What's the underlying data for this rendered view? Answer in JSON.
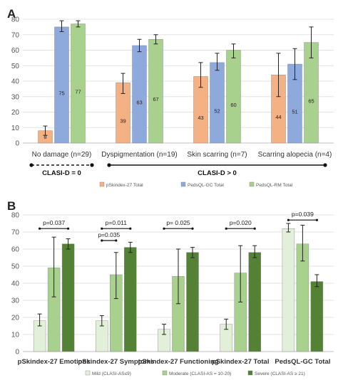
{
  "chart_data": [
    {
      "panel": "A",
      "type": "bar",
      "ylim": [
        0,
        80
      ],
      "yticks": [
        0,
        10,
        20,
        30,
        40,
        50,
        60,
        70,
        80
      ],
      "grid": true,
      "legend_position": "bottom",
      "categories": [
        "No damage (n=29)",
        "Dyspigmentation (n=19)",
        "Skin scarring (n=7)",
        "Scarring alopecia (n=4)"
      ],
      "series": [
        {
          "name": "pSkindex-27 Total",
          "color": "#F4B183",
          "values": [
            8,
            39,
            43,
            44
          ],
          "err_low": [
            5,
            32,
            36,
            30
          ],
          "err_high": [
            11,
            45,
            52,
            58
          ],
          "labels": [
            "8",
            "39",
            "43",
            "44"
          ]
        },
        {
          "name": "PedsQL-GC Total",
          "color": "#8EA9DB",
          "values": [
            75,
            63,
            52,
            51
          ],
          "err_low": [
            72,
            59,
            47,
            41
          ],
          "err_high": [
            79,
            67,
            58,
            61
          ],
          "labels": [
            "75",
            "63",
            "52",
            "51"
          ]
        },
        {
          "name": "PedsQL-RM Total",
          "color": "#A9D18E",
          "values": [
            77,
            67,
            60,
            65
          ],
          "err_low": [
            75,
            64,
            55,
            55
          ],
          "err_high": [
            79,
            70,
            64,
            75
          ],
          "labels": [
            "77",
            "67",
            "60",
            "65"
          ]
        }
      ],
      "groups": [
        {
          "label": "CLASI-D = 0",
          "style": "dashed",
          "from": 0,
          "to": 0
        },
        {
          "label": "CLASI-D > 0",
          "style": "solid",
          "from": 1,
          "to": 3
        }
      ]
    },
    {
      "panel": "B",
      "type": "bar",
      "ylim": [
        0,
        80
      ],
      "yticks": [
        0,
        10,
        20,
        30,
        40,
        50,
        60,
        70,
        80
      ],
      "grid": true,
      "legend_position": "bottom",
      "categories": [
        "pSkindex-27 Emotions",
        "pSkindex-27 Symptoms",
        "pSkindex-27 Functioning",
        "pSkindex-27 Total",
        "PedsQL-GC Total"
      ],
      "series": [
        {
          "name": "Mild (CLASI-AS≤9)",
          "color": "#E2F0D9",
          "values": [
            18,
            18,
            13,
            16,
            72
          ],
          "err_low": [
            15,
            15,
            10,
            13,
            70
          ],
          "err_high": [
            22,
            21,
            16,
            19,
            75
          ]
        },
        {
          "name": "Moderate (CLASI-AS = 10-20)",
          "color": "#A9D18E",
          "values": [
            49,
            45,
            44,
            46,
            63
          ],
          "err_low": [
            32,
            31,
            28,
            29,
            53
          ],
          "err_high": [
            67,
            58,
            60,
            62,
            74
          ]
        },
        {
          "name": "Severe (CLASI-AS ≥ 21)",
          "color": "#548235",
          "values": [
            63,
            61,
            58,
            58,
            41
          ],
          "err_low": [
            60,
            58,
            55,
            55,
            38
          ],
          "err_high": [
            66,
            64,
            61,
            62,
            45
          ]
        }
      ],
      "annotations": [
        {
          "text": "p=0.037",
          "cat": 0,
          "from": 0,
          "to": 2,
          "y": 72
        },
        {
          "text": "p=0.011",
          "cat": 1,
          "from": 0,
          "to": 2,
          "y": 72
        },
        {
          "text": "p=0.035",
          "cat": 1,
          "from": 0,
          "to": 1,
          "y": 65
        },
        {
          "text": "p= 0.025",
          "cat": 2,
          "from": 0,
          "to": 2,
          "y": 72
        },
        {
          "text": "p=0.020",
          "cat": 3,
          "from": 0,
          "to": 2,
          "y": 72
        },
        {
          "text": "p=0.039",
          "cat": 4,
          "from": 0,
          "to": 2,
          "y": 77
        }
      ]
    }
  ]
}
